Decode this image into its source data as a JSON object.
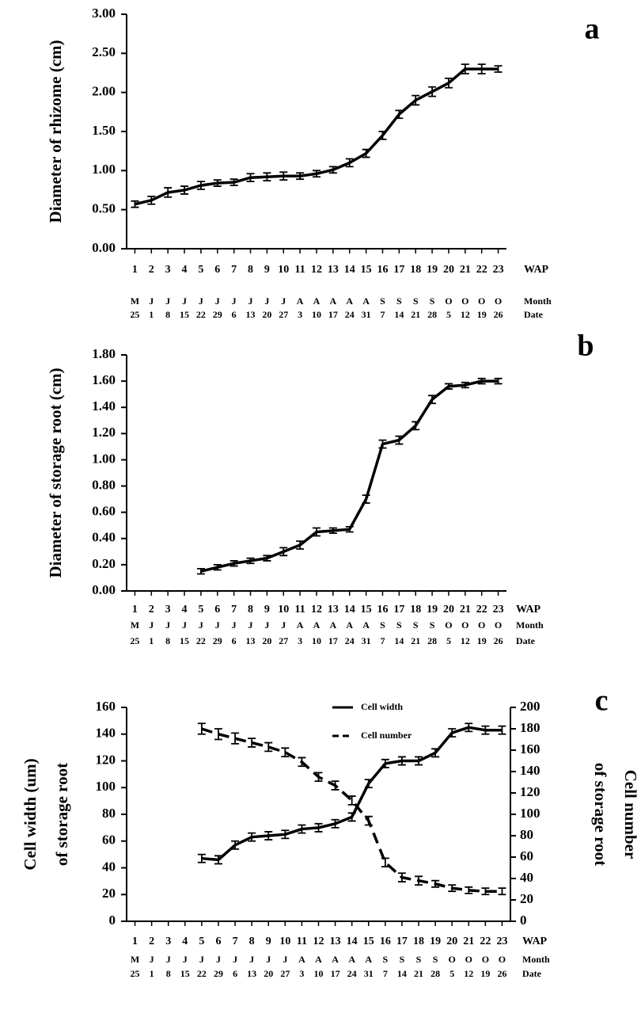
{
  "chart_data": [
    {
      "type": "line",
      "panel_label": "a",
      "ylabel": [
        "Diameter of rhizome (cm)"
      ],
      "x": [
        1,
        2,
        3,
        4,
        5,
        6,
        7,
        8,
        9,
        10,
        11,
        12,
        13,
        14,
        15,
        16,
        17,
        18,
        19,
        20,
        21,
        22,
        23
      ],
      "xlim": [
        0.5,
        23.5
      ],
      "months": [
        "M",
        "J",
        "J",
        "J",
        "J",
        "J",
        "J",
        "J",
        "J",
        "J",
        "A",
        "A",
        "A",
        "A",
        "A",
        "S",
        "S",
        "S",
        "S",
        "O",
        "O",
        "O",
        "O"
      ],
      "dates": [
        "25",
        "1",
        "8",
        "15",
        "22",
        "29",
        "6",
        "13",
        "20",
        "27",
        "3",
        "10",
        "17",
        "24",
        "31",
        "7",
        "14",
        "21",
        "28",
        "5",
        "12",
        "19",
        "26"
      ],
      "row_labels": [
        "WAP",
        "Month",
        "Date"
      ],
      "ylim": [
        0,
        3
      ],
      "yticks": [
        {
          "value": 0,
          "label": "0.00"
        },
        {
          "value": 0.5,
          "label": "0.50"
        },
        {
          "value": 1,
          "label": "1.00"
        },
        {
          "value": 1.5,
          "label": "1.50"
        },
        {
          "value": 2,
          "label": "2.00"
        },
        {
          "value": 2.5,
          "label": "2.50"
        },
        {
          "value": 3,
          "label": "3.00"
        }
      ],
      "series": [
        {
          "color": "#000000",
          "values": [
            0.57,
            0.62,
            0.72,
            0.75,
            0.81,
            0.84,
            0.85,
            0.91,
            0.92,
            0.93,
            0.93,
            0.96,
            1.01,
            1.1,
            1.22,
            1.45,
            1.72,
            1.9,
            2.01,
            2.12,
            2.3,
            2.3,
            2.3
          ],
          "errors": [
            0.04,
            0.05,
            0.06,
            0.05,
            0.05,
            0.04,
            0.04,
            0.05,
            0.05,
            0.05,
            0.04,
            0.04,
            0.04,
            0.05,
            0.05,
            0.05,
            0.05,
            0.06,
            0.06,
            0.06,
            0.06,
            0.06,
            0.04
          ]
        }
      ]
    },
    {
      "type": "line",
      "panel_label": "b",
      "ylabel": [
        "Diameter of storage root (cm)"
      ],
      "x": [
        1,
        2,
        3,
        4,
        5,
        6,
        7,
        8,
        9,
        10,
        11,
        12,
        13,
        14,
        15,
        16,
        17,
        18,
        19,
        20,
        21,
        22,
        23
      ],
      "xlim": [
        0.5,
        23.5
      ],
      "months": [
        "M",
        "J",
        "J",
        "J",
        "J",
        "J",
        "J",
        "J",
        "J",
        "J",
        "A",
        "A",
        "A",
        "A",
        "A",
        "S",
        "S",
        "S",
        "S",
        "O",
        "O",
        "O",
        "O"
      ],
      "dates": [
        "25",
        "1",
        "8",
        "15",
        "22",
        "29",
        "6",
        "13",
        "20",
        "27",
        "3",
        "10",
        "17",
        "24",
        "31",
        "7",
        "14",
        "21",
        "28",
        "5",
        "12",
        "19",
        "26"
      ],
      "row_labels": [
        "WAP",
        "Month",
        "Date"
      ],
      "ylim": [
        0,
        1.8
      ],
      "yticks": [
        {
          "value": 0,
          "label": "0.00"
        },
        {
          "value": 0.2,
          "label": "0.20"
        },
        {
          "value": 0.4,
          "label": "0.40"
        },
        {
          "value": 0.6,
          "label": "0.60"
        },
        {
          "value": 0.8,
          "label": "0.80"
        },
        {
          "value": 1,
          "label": "1.00"
        },
        {
          "value": 1.2,
          "label": "1.20"
        },
        {
          "value": 1.4,
          "label": "1.40"
        },
        {
          "value": 1.6,
          "label": "1.60"
        },
        {
          "value": 1.8,
          "label": "1.80"
        }
      ],
      "series": [
        {
          "color": "#000000",
          "values": [
            null,
            null,
            null,
            null,
            0.15,
            0.18,
            0.21,
            0.23,
            0.25,
            0.3,
            0.35,
            0.45,
            0.46,
            0.47,
            0.7,
            1.12,
            1.15,
            1.26,
            1.46,
            1.56,
            1.57,
            1.6,
            1.6
          ],
          "errors": [
            null,
            null,
            null,
            null,
            0.02,
            0.02,
            0.02,
            0.02,
            0.02,
            0.03,
            0.03,
            0.03,
            0.02,
            0.02,
            0.03,
            0.03,
            0.03,
            0.03,
            0.03,
            0.02,
            0.02,
            0.02,
            0.02
          ]
        }
      ]
    },
    {
      "type": "line",
      "panel_label": "c",
      "ylabel": [
        "Cell width (um)",
        "of storage root"
      ],
      "y2label": [
        "Cell number",
        "of storage root"
      ],
      "x": [
        1,
        2,
        3,
        4,
        5,
        6,
        7,
        8,
        9,
        10,
        11,
        12,
        13,
        14,
        15,
        16,
        17,
        18,
        19,
        20,
        21,
        22,
        23
      ],
      "xlim": [
        0.5,
        23.5
      ],
      "months": [
        "M",
        "J",
        "J",
        "J",
        "J",
        "J",
        "J",
        "J",
        "J",
        "J",
        "A",
        "A",
        "A",
        "A",
        "A",
        "S",
        "S",
        "S",
        "S",
        "O",
        "O",
        "O",
        "O"
      ],
      "dates": [
        "25",
        "1",
        "8",
        "15",
        "22",
        "29",
        "6",
        "13",
        "20",
        "27",
        "3",
        "10",
        "17",
        "24",
        "31",
        "7",
        "14",
        "21",
        "28",
        "5",
        "12",
        "19",
        "26"
      ],
      "row_labels": [
        "WAP",
        "Month",
        "Date"
      ],
      "ylim": [
        0,
        160
      ],
      "yticks": [
        0,
        20,
        40,
        60,
        80,
        100,
        120,
        140,
        160
      ],
      "y2lim": [
        0,
        200
      ],
      "y2ticks": [
        0,
        20,
        40,
        60,
        80,
        100,
        120,
        140,
        160,
        180,
        200
      ],
      "series": [
        {
          "name": "Cell width",
          "color": "#000000",
          "dash": false,
          "values": [
            null,
            null,
            null,
            null,
            47,
            46,
            57,
            63,
            64,
            65,
            69,
            70,
            73,
            78,
            103,
            118,
            120,
            120,
            126,
            141,
            145,
            143,
            143
          ],
          "errors": [
            null,
            null,
            null,
            null,
            3,
            3,
            3,
            3,
            3,
            3,
            3,
            3,
            3,
            3,
            3,
            3,
            3,
            3,
            3,
            3,
            3,
            3,
            3
          ]
        },
        {
          "name": "Cell number",
          "color": "#000000",
          "dash": true,
          "axis": "y2",
          "values": [
            null,
            null,
            null,
            null,
            180,
            175,
            171,
            167,
            163,
            158,
            149,
            135,
            127,
            113,
            94,
            55,
            41,
            38,
            35,
            31,
            29,
            28,
            28
          ],
          "errors": [
            null,
            null,
            null,
            null,
            5,
            5,
            5,
            4,
            4,
            4,
            4,
            4,
            4,
            4,
            4,
            4,
            4,
            4,
            3,
            3,
            3,
            3,
            3
          ]
        }
      ],
      "legend": "top"
    }
  ]
}
